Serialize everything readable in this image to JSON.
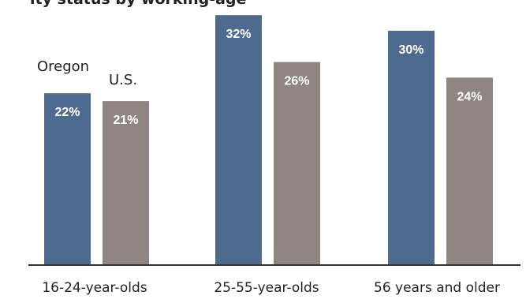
{
  "chart_data": {
    "type": "bar",
    "title": "",
    "clipped_title_text": "ity status by working-age",
    "categories": [
      "16-24-year-olds",
      "25-55-year-olds",
      "56 years and older"
    ],
    "series": [
      {
        "name": "Oregon",
        "values": [
          22,
          32,
          30
        ],
        "labels": [
          "22%",
          "32%",
          "30%"
        ]
      },
      {
        "name": "U.S.",
        "values": [
          21,
          26,
          24
        ],
        "labels": [
          "21%",
          "26%",
          "24%"
        ]
      }
    ],
    "value_format": "percent",
    "xlabel": "",
    "ylabel": "",
    "ylim": [
      0,
      34
    ],
    "grid": false,
    "legend_style": "series names written above the first category's bars",
    "colors": {
      "Oregon": "#4f6a8f",
      "U.S.": "#908580",
      "baseline": "#333333",
      "value_label": "#ffffff",
      "category_label": "#222222"
    }
  }
}
